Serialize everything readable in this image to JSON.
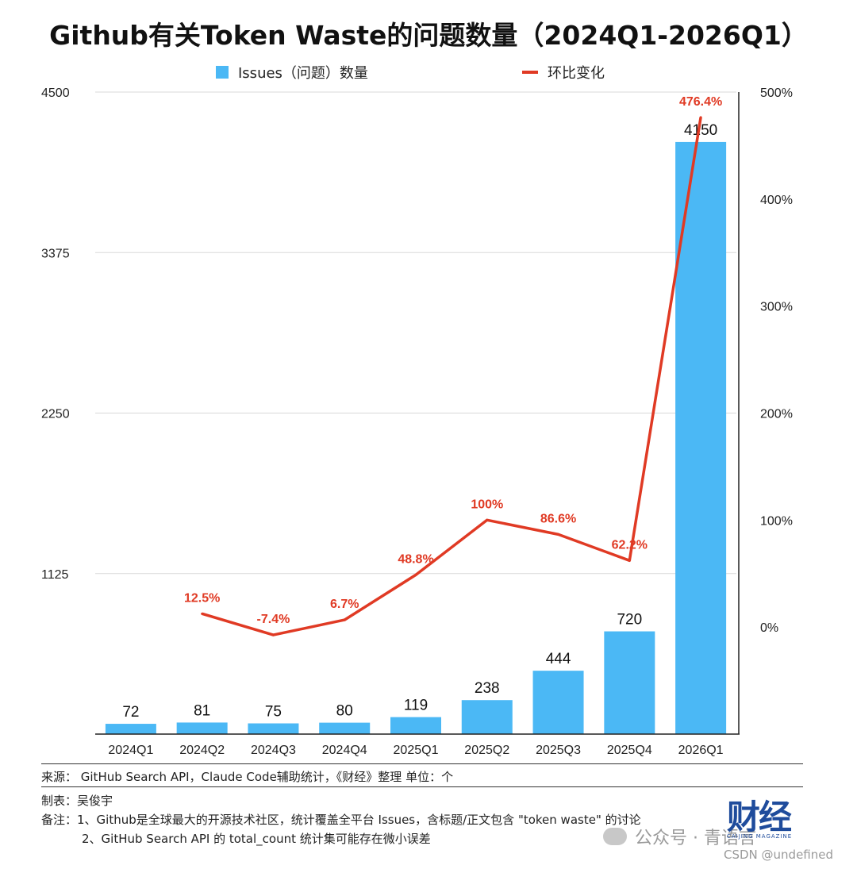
{
  "title": "Github有关Token Waste的问题数量（2024Q1-2026Q1）",
  "legend": {
    "bars": "Issues（问题）数量",
    "line": "环比变化"
  },
  "colors": {
    "bar": "#4bb8f5",
    "line": "#e03a24",
    "grid": "#d9d9d9",
    "axis": "#222222"
  },
  "chart_data": {
    "type": "bar",
    "categories": [
      "2024Q1",
      "2024Q2",
      "2024Q3",
      "2024Q4",
      "2025Q1",
      "2025Q2",
      "2025Q3",
      "2025Q4",
      "2026Q1"
    ],
    "series": [
      {
        "name": "Issues（问题）数量",
        "type": "bar",
        "axis": "left",
        "values": [
          72,
          81,
          75,
          80,
          119,
          238,
          444,
          720,
          4150
        ],
        "labels": [
          "72",
          "81",
          "75",
          "80",
          "119",
          "238",
          "444",
          "720",
          "4150"
        ]
      },
      {
        "name": "环比变化",
        "type": "line",
        "axis": "right",
        "values": [
          null,
          12.5,
          -7.4,
          6.7,
          48.8,
          100,
          86.6,
          62.2,
          476.4
        ],
        "labels": [
          "",
          "12.5%",
          "-7.4%",
          "6.7%",
          "48.8%",
          "100%",
          "86.6%",
          "62.2%",
          "476.4%"
        ]
      }
    ],
    "y_left": {
      "ylim": [
        0,
        4500
      ],
      "ticks": [
        "1125",
        "2250",
        "3375",
        "4500"
      ],
      "tick_values": [
        1125,
        2250,
        3375,
        4500
      ]
    },
    "y_right": {
      "ylim": [
        -100,
        500
      ],
      "ticks": [
        "0%",
        "100%",
        "200%",
        "300%",
        "400%",
        "500%"
      ],
      "tick_values": [
        0,
        100,
        200,
        300,
        400,
        500
      ]
    },
    "grid": true,
    "legend_position": "top"
  },
  "footer": {
    "source": "来源：  GitHub Search API，Claude Code辅助统计，《财经》整理     单位：个",
    "author": "制表：吴俊宇",
    "note1": "备注：1、Github是全球最大的开源技术社区，统计覆盖全平台 Issues，含标题/正文包含 \"token waste\" 的讨论",
    "note2": "2、GitHub Search API 的 total_count 统计集可能存在微小误差"
  },
  "brand": {
    "logo": "财经",
    "sub": "CAIJING MAGAZINE"
  },
  "watermark": {
    "wechat": "公众号 · 青语言",
    "csdn": "CSDN @undefined"
  }
}
